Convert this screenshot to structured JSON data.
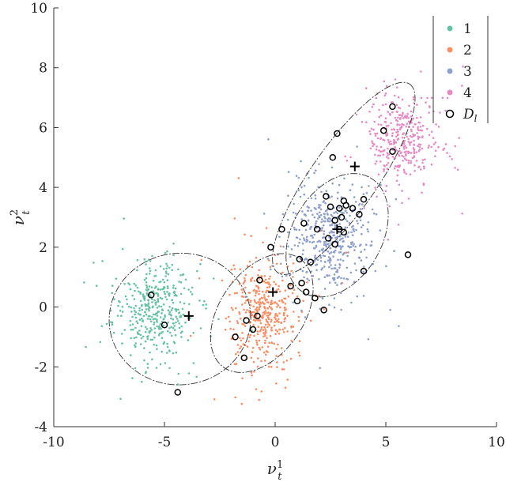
{
  "chart_data": {
    "type": "scatter",
    "title": "",
    "xlabel": "ν_t^1",
    "ylabel": "ν_t^2",
    "xlim": [
      -10,
      10
    ],
    "ylim": [
      -4,
      10
    ],
    "x_ticks": [
      "-10",
      "-5",
      "0",
      "5",
      "10"
    ],
    "y_ticks": [
      "-4",
      "-2",
      "0",
      "2",
      "4",
      "6",
      "8",
      "10"
    ],
    "grid": false,
    "legend_position": "top-right",
    "legend": [
      "1",
      "2",
      "3",
      "4",
      "D_l"
    ],
    "clusters": [
      {
        "name": "1",
        "color": "#66c2a5",
        "center": [
          -5.5,
          -0.1
        ],
        "std": [
          0.9,
          0.8
        ],
        "count": 400
      },
      {
        "name": "2",
        "color": "#fc8d62",
        "center": [
          -0.6,
          -0.2
        ],
        "std": [
          0.8,
          0.9
        ],
        "count": 400
      },
      {
        "name": "3",
        "color": "#8da0cb",
        "center": [
          2.5,
          2.3
        ],
        "std": [
          0.9,
          0.9
        ],
        "count": 450
      },
      {
        "name": "4",
        "color": "#e78ac3",
        "center": [
          5.8,
          5.6
        ],
        "std": [
          0.8,
          0.8
        ],
        "count": 350
      }
    ],
    "centroids": [
      [
        -3.9,
        -0.3
      ],
      [
        -0.1,
        0.5
      ],
      [
        2.8,
        2.6
      ],
      [
        3.6,
        4.7
      ]
    ],
    "ellipses": [
      {
        "center": [
          -4.3,
          -0.4
        ],
        "rx": 3.2,
        "ry": 2.2,
        "angle": 5
      },
      {
        "center": [
          -0.6,
          -0.2
        ],
        "rx": 3.0,
        "ry": 1.4,
        "angle": 55
      },
      {
        "center": [
          2.8,
          2.4
        ],
        "rx": 3.0,
        "ry": 1.5,
        "angle": 60
      },
      {
        "center": [
          3.1,
          4.3
        ],
        "rx": 5.2,
        "ry": 1.1,
        "angle": 55
      }
    ],
    "labeled_points": [
      [
        -5.6,
        0.4
      ],
      [
        -5.0,
        -0.6
      ],
      [
        -4.4,
        -2.85
      ],
      [
        -1.8,
        -1.0
      ],
      [
        -1.4,
        -1.7
      ],
      [
        -1.3,
        -0.45
      ],
      [
        -1.0,
        -0.75
      ],
      [
        -0.8,
        -0.3
      ],
      [
        -0.7,
        0.9
      ],
      [
        -0.2,
        2.0
      ],
      [
        0.3,
        2.6
      ],
      [
        0.7,
        0.7
      ],
      [
        1.0,
        0.2
      ],
      [
        1.1,
        1.6
      ],
      [
        1.2,
        0.8
      ],
      [
        1.3,
        2.8
      ],
      [
        1.4,
        0.5
      ],
      [
        1.8,
        0.3
      ],
      [
        1.9,
        2.6
      ],
      [
        2.2,
        -0.1
      ],
      [
        2.3,
        3.7
      ],
      [
        2.4,
        2.3
      ],
      [
        2.6,
        5.0
      ],
      [
        2.7,
        2.9
      ],
      [
        2.7,
        2.1
      ],
      [
        2.8,
        5.8
      ],
      [
        2.9,
        3.3
      ],
      [
        2.9,
        2.6
      ],
      [
        3.0,
        3.0
      ],
      [
        3.1,
        2.5
      ],
      [
        3.2,
        3.4
      ],
      [
        3.5,
        3.3
      ],
      [
        3.8,
        3.1
      ],
      [
        4.0,
        1.2
      ],
      [
        4.0,
        3.6
      ],
      [
        4.9,
        5.9
      ],
      [
        5.3,
        6.7
      ],
      [
        5.3,
        5.2
      ],
      [
        6.0,
        1.75
      ],
      [
        3.1,
        3.55
      ],
      [
        2.5,
        3.35
      ],
      [
        1.6,
        1.5
      ]
    ]
  }
}
